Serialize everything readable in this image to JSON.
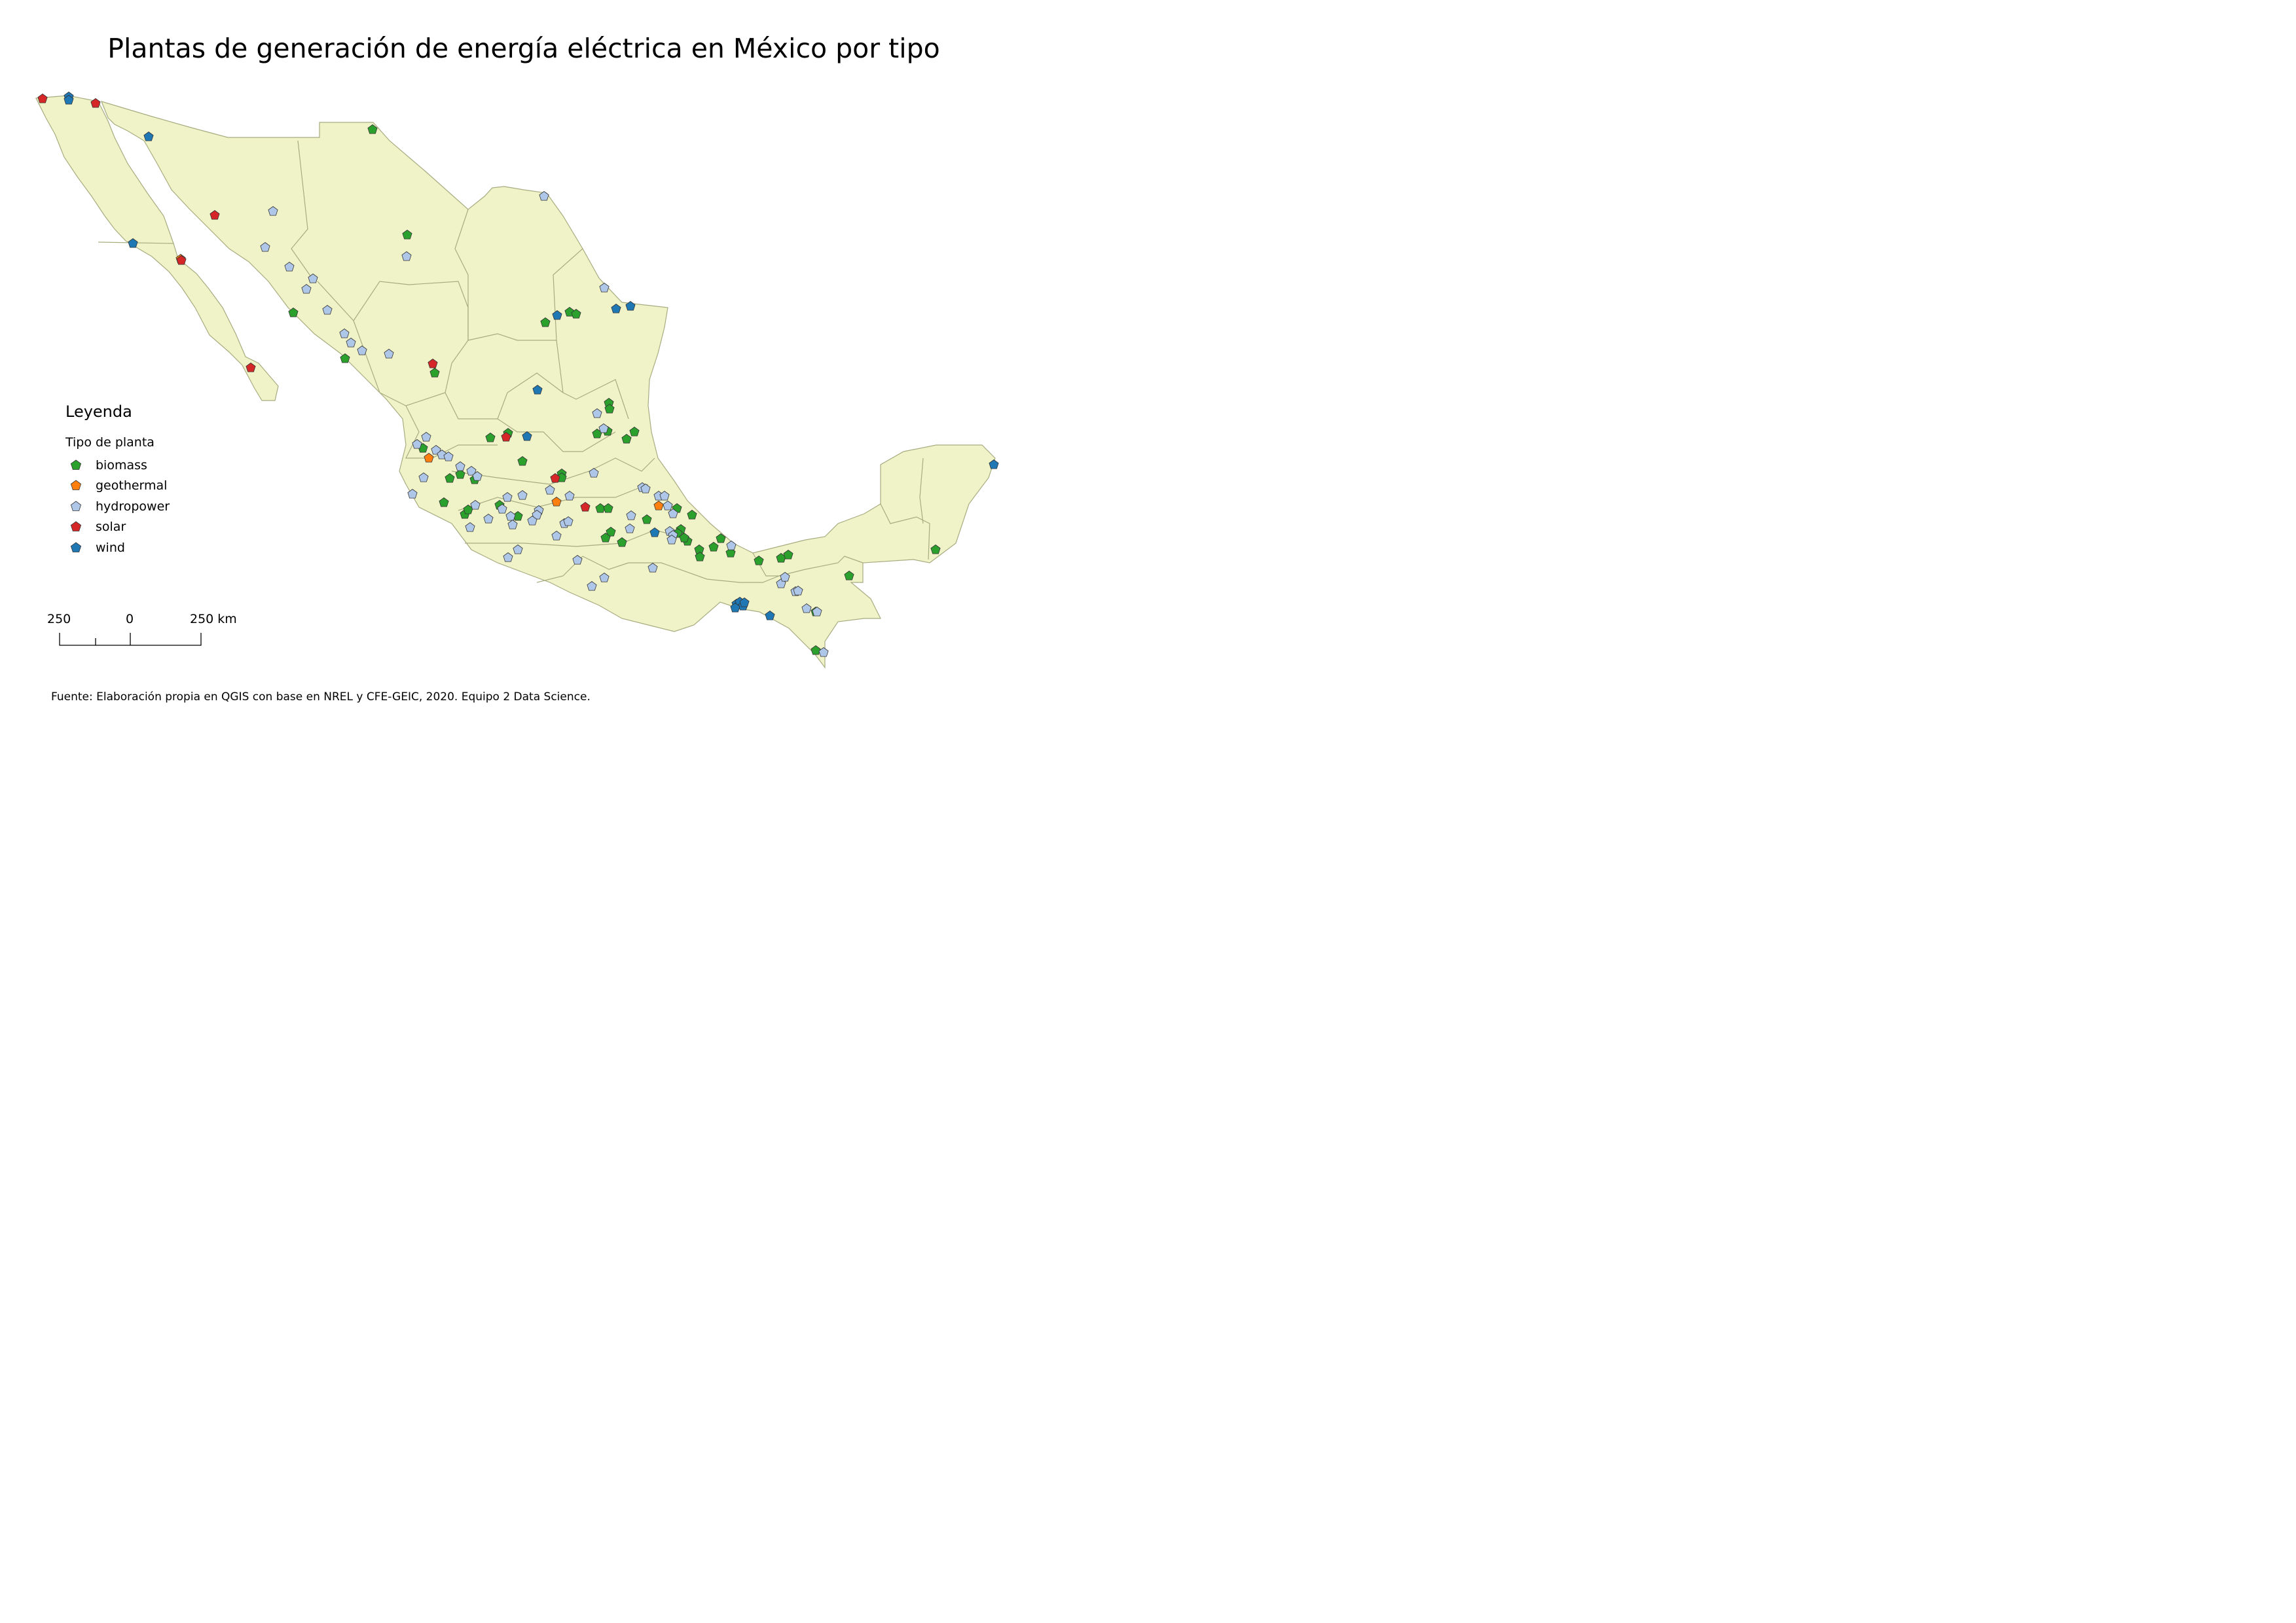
{
  "title": "Plantas de generación de energía eléctrica en México por tipo",
  "legend": {
    "title": "Leyenda",
    "subtitle": "Tipo de planta",
    "items": [
      {
        "key": "biomass",
        "label": "biomass",
        "color": "#2ca02c"
      },
      {
        "key": "geothermal",
        "label": "geothermal",
        "color": "#ff7f0e"
      },
      {
        "key": "hydropower",
        "label": "hydropower",
        "color": "#aec7e8"
      },
      {
        "key": "solar",
        "label": "solar",
        "color": "#d62728"
      },
      {
        "key": "wind",
        "label": "wind",
        "color": "#1f77b4"
      }
    ]
  },
  "scale_bar": {
    "labels": [
      "250",
      "0",
      "250 km"
    ]
  },
  "source": "Fuente: Elaboración propia en QGIS con base en NREL y CFE-GEIC, 2020. Equipo 2 Data Science.",
  "colors": {
    "land_fill": "#f0f2c8",
    "land_stroke": "#a7ac80",
    "marker_stroke": "#333333"
  }
}
